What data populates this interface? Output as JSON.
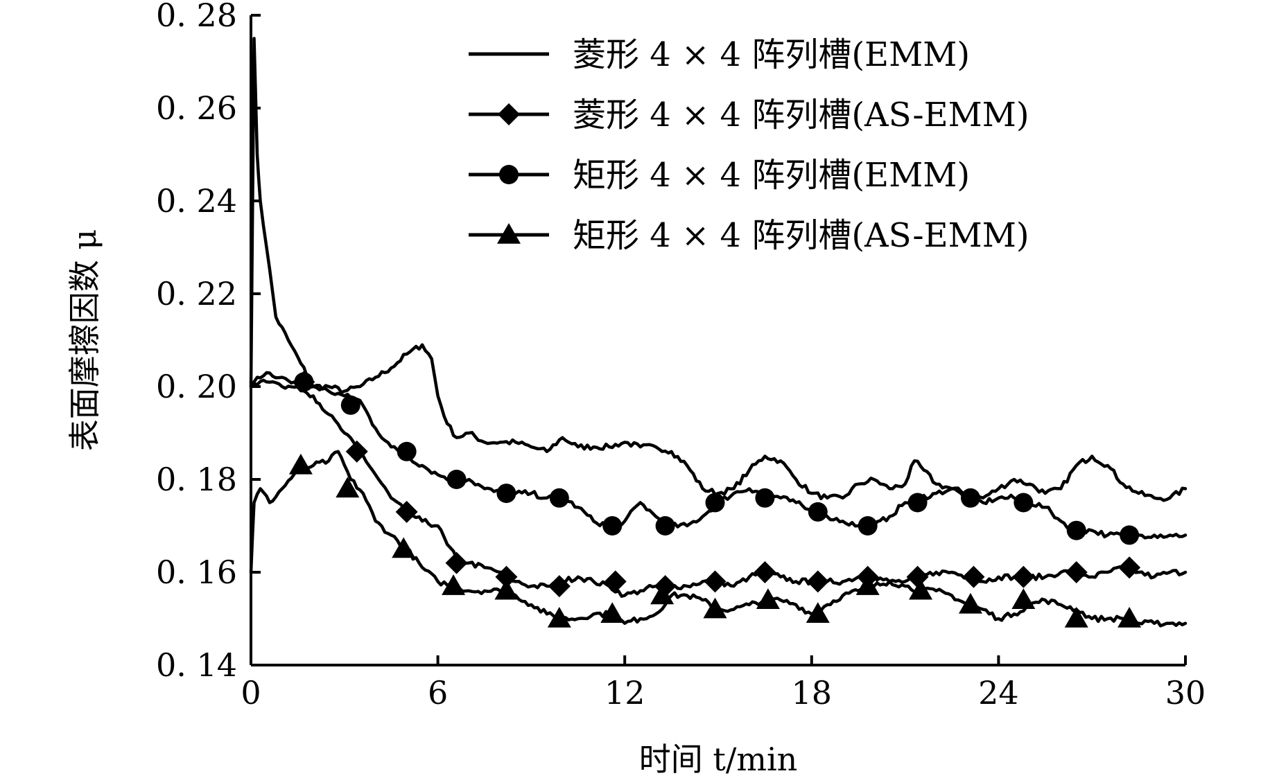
{
  "chart_data": {
    "type": "line",
    "xlabel": "时间 t/min",
    "ylabel": "表面摩擦因数 μ",
    "xlim": [
      0,
      30
    ],
    "ylim": [
      0.14,
      0.28
    ],
    "x_ticks": [
      "0",
      "6",
      "12",
      "18",
      "24",
      "30"
    ],
    "y_ticks": [
      "0. 14",
      "0. 16",
      "0. 18",
      "0. 20",
      "0. 22",
      "0. 24",
      "0. 26",
      "0. 28"
    ],
    "grid": false,
    "legend_position": "top-right",
    "series": [
      {
        "name": "菱形 4 × 4 阵列槽(EMM)",
        "marker": "none",
        "x": [
          0,
          0.1,
          0.2,
          0.3,
          0.5,
          0.8,
          1.2,
          1.6,
          2.0,
          2.5,
          3.0,
          3.5,
          4.0,
          4.5,
          5.0,
          5.5,
          5.8,
          6.0,
          6.3,
          6.6,
          7.0,
          7.5,
          8.0,
          8.5,
          9.0,
          9.5,
          10.0,
          10.5,
          11.0,
          11.5,
          12.0,
          12.5,
          13.0,
          13.5,
          14.0,
          14.5,
          15.0,
          15.5,
          16.0,
          16.5,
          17.0,
          17.5,
          18.0,
          18.5,
          19.0,
          19.5,
          20.0,
          20.5,
          21.0,
          21.3,
          21.6,
          22.0,
          22.5,
          23.0,
          23.5,
          24.0,
          24.5,
          25.0,
          25.5,
          26.0,
          26.5,
          27.0,
          27.5,
          28.0,
          28.5,
          29.0,
          29.5,
          30.0
        ],
        "y": [
          0.2,
          0.275,
          0.25,
          0.24,
          0.23,
          0.215,
          0.21,
          0.205,
          0.2,
          0.2,
          0.199,
          0.2,
          0.202,
          0.204,
          0.207,
          0.209,
          0.206,
          0.198,
          0.192,
          0.189,
          0.19,
          0.188,
          0.188,
          0.188,
          0.187,
          0.186,
          0.189,
          0.187,
          0.187,
          0.187,
          0.188,
          0.187,
          0.187,
          0.186,
          0.183,
          0.178,
          0.177,
          0.178,
          0.182,
          0.185,
          0.184,
          0.18,
          0.177,
          0.176,
          0.176,
          0.179,
          0.18,
          0.178,
          0.179,
          0.184,
          0.182,
          0.179,
          0.178,
          0.177,
          0.176,
          0.178,
          0.18,
          0.179,
          0.177,
          0.178,
          0.183,
          0.185,
          0.183,
          0.179,
          0.177,
          0.176,
          0.176,
          0.178
        ]
      },
      {
        "name": "菱形 4 × 4 阵列槽(AS-EMM)",
        "marker": "diamond",
        "x": [
          0,
          0.2,
          0.5,
          1.0,
          1.5,
          2.0,
          2.5,
          3.0,
          3.5,
          4.0,
          4.5,
          5.0,
          5.5,
          6.0,
          6.3,
          6.6,
          7.0,
          7.5,
          8.0,
          8.5,
          9.0,
          9.5,
          10.0,
          10.5,
          11.0,
          11.5,
          12.0,
          12.5,
          13.0,
          13.5,
          14.0,
          14.5,
          15.0,
          15.5,
          16.0,
          16.5,
          17.0,
          17.5,
          18.0,
          18.5,
          19.0,
          19.5,
          20.0,
          20.5,
          21.0,
          21.5,
          22.0,
          22.5,
          23.0,
          23.5,
          24.0,
          24.5,
          25.0,
          25.5,
          26.0,
          26.5,
          27.0,
          27.5,
          28.0,
          28.5,
          29.0,
          29.5,
          30.0
        ],
        "y": [
          0.2,
          0.202,
          0.203,
          0.202,
          0.2,
          0.198,
          0.194,
          0.19,
          0.186,
          0.181,
          0.176,
          0.173,
          0.171,
          0.17,
          0.166,
          0.163,
          0.162,
          0.161,
          0.16,
          0.158,
          0.157,
          0.157,
          0.158,
          0.159,
          0.158,
          0.157,
          0.155,
          0.156,
          0.157,
          0.157,
          0.157,
          0.158,
          0.158,
          0.157,
          0.159,
          0.16,
          0.159,
          0.158,
          0.158,
          0.158,
          0.158,
          0.159,
          0.159,
          0.158,
          0.158,
          0.159,
          0.16,
          0.16,
          0.159,
          0.158,
          0.159,
          0.159,
          0.159,
          0.159,
          0.16,
          0.16,
          0.159,
          0.16,
          0.161,
          0.16,
          0.159,
          0.16,
          0.16
        ],
        "marker_x": [
          1.7,
          3.4,
          5.0,
          6.6,
          8.2,
          9.9,
          11.7,
          13.3,
          14.9,
          16.5,
          18.2,
          19.8,
          21.4,
          23.2,
          24.8,
          26.5,
          28.2
        ],
        "marker_y": [
          0.201,
          0.186,
          0.173,
          0.162,
          0.159,
          0.157,
          0.158,
          0.157,
          0.158,
          0.16,
          0.158,
          0.159,
          0.159,
          0.159,
          0.159,
          0.16,
          0.161
        ]
      },
      {
        "name": "矩形 4 × 4 阵列槽(EMM)",
        "marker": "circle",
        "x": [
          0,
          0.5,
          1.0,
          1.5,
          2.0,
          2.5,
          3.0,
          3.5,
          4.0,
          4.5,
          5.0,
          5.5,
          6.0,
          6.5,
          7.0,
          7.5,
          8.0,
          8.5,
          9.0,
          9.5,
          10.0,
          10.5,
          11.0,
          11.5,
          12.0,
          12.5,
          13.0,
          13.5,
          14.0,
          14.5,
          15.0,
          15.5,
          16.0,
          16.5,
          17.0,
          17.5,
          18.0,
          18.5,
          19.0,
          19.5,
          20.0,
          20.5,
          21.0,
          21.5,
          22.0,
          22.5,
          23.0,
          23.5,
          24.0,
          24.5,
          25.0,
          25.5,
          26.0,
          26.5,
          27.0,
          27.5,
          28.0,
          28.5,
          29.0,
          29.5,
          30.0
        ],
        "y": [
          0.201,
          0.201,
          0.2,
          0.2,
          0.2,
          0.199,
          0.198,
          0.197,
          0.191,
          0.187,
          0.185,
          0.183,
          0.181,
          0.18,
          0.18,
          0.178,
          0.177,
          0.177,
          0.177,
          0.176,
          0.176,
          0.174,
          0.171,
          0.17,
          0.171,
          0.175,
          0.172,
          0.17,
          0.17,
          0.172,
          0.175,
          0.177,
          0.178,
          0.177,
          0.176,
          0.175,
          0.173,
          0.172,
          0.171,
          0.17,
          0.17,
          0.172,
          0.175,
          0.176,
          0.177,
          0.178,
          0.176,
          0.175,
          0.176,
          0.176,
          0.175,
          0.174,
          0.171,
          0.169,
          0.169,
          0.168,
          0.168,
          0.168,
          0.168,
          0.168,
          0.168
        ],
        "marker_x": [
          1.7,
          3.2,
          5.0,
          6.6,
          8.2,
          9.9,
          11.6,
          13.3,
          14.9,
          16.5,
          18.2,
          19.8,
          21.4,
          23.1,
          24.8,
          26.5,
          28.2
        ],
        "marker_y": [
          0.201,
          0.196,
          0.186,
          0.18,
          0.177,
          0.176,
          0.17,
          0.17,
          0.175,
          0.176,
          0.173,
          0.17,
          0.175,
          0.176,
          0.175,
          0.169,
          0.168
        ]
      },
      {
        "name": "矩形 4 × 4 阵列槽(AS-EMM)",
        "marker": "triangle",
        "x": [
          0,
          0.1,
          0.3,
          0.6,
          1.0,
          1.5,
          2.0,
          2.5,
          2.8,
          3.2,
          3.6,
          4.0,
          4.5,
          5.0,
          5.5,
          6.0,
          6.5,
          7.0,
          7.5,
          8.0,
          8.5,
          9.0,
          9.5,
          10.0,
          10.5,
          11.0,
          11.5,
          12.0,
          12.5,
          13.0,
          13.5,
          14.0,
          14.5,
          15.0,
          15.5,
          16.0,
          16.5,
          17.0,
          17.5,
          18.0,
          18.5,
          19.0,
          19.5,
          20.0,
          20.5,
          21.0,
          21.5,
          22.0,
          22.5,
          23.0,
          23.5,
          24.0,
          24.5,
          25.0,
          25.5,
          26.0,
          26.5,
          27.0,
          27.5,
          28.0,
          28.5,
          29.0,
          29.5,
          30.0
        ],
        "y": [
          0.16,
          0.175,
          0.178,
          0.175,
          0.178,
          0.182,
          0.183,
          0.184,
          0.186,
          0.18,
          0.177,
          0.171,
          0.168,
          0.165,
          0.161,
          0.158,
          0.157,
          0.156,
          0.156,
          0.156,
          0.155,
          0.153,
          0.151,
          0.15,
          0.15,
          0.151,
          0.151,
          0.149,
          0.15,
          0.151,
          0.155,
          0.155,
          0.154,
          0.152,
          0.152,
          0.153,
          0.154,
          0.154,
          0.153,
          0.151,
          0.153,
          0.155,
          0.156,
          0.157,
          0.158,
          0.157,
          0.156,
          0.156,
          0.155,
          0.153,
          0.152,
          0.15,
          0.151,
          0.153,
          0.154,
          0.153,
          0.152,
          0.15,
          0.15,
          0.15,
          0.149,
          0.149,
          0.149,
          0.149
        ],
        "marker_x": [
          1.6,
          3.1,
          4.9,
          6.5,
          8.2,
          9.9,
          11.6,
          13.2,
          14.9,
          16.6,
          18.2,
          19.8,
          21.5,
          23.1,
          24.8,
          26.5,
          28.2
        ],
        "marker_y": [
          0.183,
          0.178,
          0.165,
          0.157,
          0.156,
          0.15,
          0.151,
          0.155,
          0.152,
          0.154,
          0.151,
          0.157,
          0.156,
          0.153,
          0.154,
          0.15,
          0.15
        ]
      }
    ]
  }
}
